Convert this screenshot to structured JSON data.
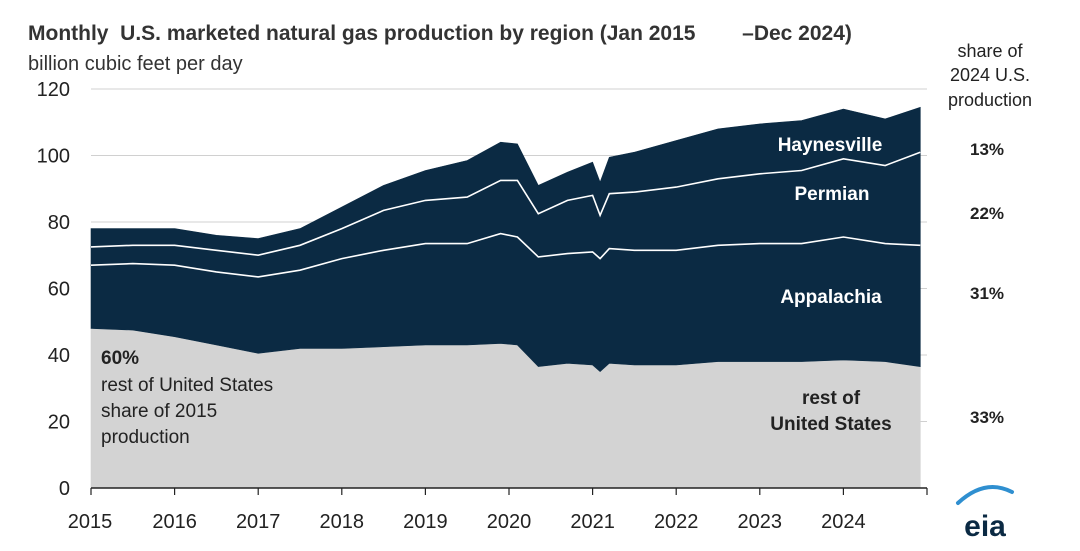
{
  "chart_data": {
    "type": "area",
    "title": "Monthly  U.S. marketed natural gas production by region (Jan 2015        –Dec 2024)",
    "subtitle": "billion cubic feet per day",
    "ylim": [
      0,
      120
    ],
    "y_ticks": [
      "0",
      "20",
      "40",
      "60",
      "80",
      "100",
      "120"
    ],
    "x_ticks": [
      "2015",
      "2016",
      "2017",
      "2018",
      "2019",
      "2020",
      "2021",
      "2022",
      "2023",
      "2024"
    ],
    "x_start": 2015,
    "x_end": 2025,
    "grid": true,
    "x": [
      2015.0,
      2015.5,
      2016.0,
      2016.5,
      2017.0,
      2017.5,
      2018.0,
      2018.5,
      2019.0,
      2019.5,
      2019.9,
      2020.1,
      2020.35,
      2020.7,
      2021.0,
      2021.09,
      2021.2,
      2021.5,
      2022.0,
      2022.5,
      2023.0,
      2023.5,
      2024.0,
      2024.5,
      2024.92
    ],
    "series": [
      {
        "name": "rest of United States",
        "values": [
          48,
          47.5,
          45.5,
          43,
          40.5,
          42,
          42,
          42.5,
          43,
          43,
          43.5,
          43,
          36.5,
          37.5,
          37,
          35,
          37.5,
          37,
          37,
          38,
          38,
          38,
          38.5,
          38,
          36.5
        ],
        "color": "#d3d3d3"
      },
      {
        "name": "Appalachia",
        "values": [
          19,
          20,
          21.5,
          22,
          23,
          23.5,
          27,
          29,
          30.5,
          30.5,
          33,
          32.5,
          33,
          33,
          34,
          34,
          34.5,
          34.5,
          34.5,
          35,
          35.5,
          35.5,
          37,
          35.5,
          36.5
        ],
        "color": "#0b2a43"
      },
      {
        "name": "Permian",
        "values": [
          5.5,
          5.5,
          6,
          6.5,
          6.5,
          7.5,
          9,
          12,
          13,
          14,
          16,
          17,
          13,
          16,
          17,
          13,
          16.5,
          17.5,
          19,
          20,
          21,
          22,
          23.5,
          23.5,
          28
        ],
        "color": "#0b2a43"
      },
      {
        "name": "Haynesville",
        "values": [
          5.5,
          5,
          5,
          4.5,
          5,
          5,
          6.5,
          7.5,
          9,
          11,
          11.5,
          11,
          8.5,
          8.5,
          10,
          10,
          11,
          12,
          14,
          15,
          15,
          15,
          15,
          14,
          13.5
        ],
        "color": "#0b2a43"
      }
    ],
    "divider_color": "#ffffff",
    "shares_heading": [
      "share of",
      "2024 U.S.",
      "production"
    ],
    "shares": [
      {
        "name": "Haynesville",
        "share": "13%"
      },
      {
        "name": "Permian",
        "share": "22%"
      },
      {
        "name": "Appalachia",
        "share": "31%"
      },
      {
        "name": "rest of United States",
        "share": "33%"
      }
    ],
    "area_labels": {
      "haynesville": "Haynesville",
      "permian": "Permian",
      "appalachia": "Appalachia",
      "rest_line1": "rest of",
      "rest_line2": "United States"
    },
    "annotation": {
      "pct": "60%",
      "line1": "rest of United States",
      "line2": "share of 2015",
      "line3": "production"
    }
  },
  "logo": {
    "text": "eia",
    "color": "#0b2a43",
    "accent": "#2f8fd0"
  }
}
